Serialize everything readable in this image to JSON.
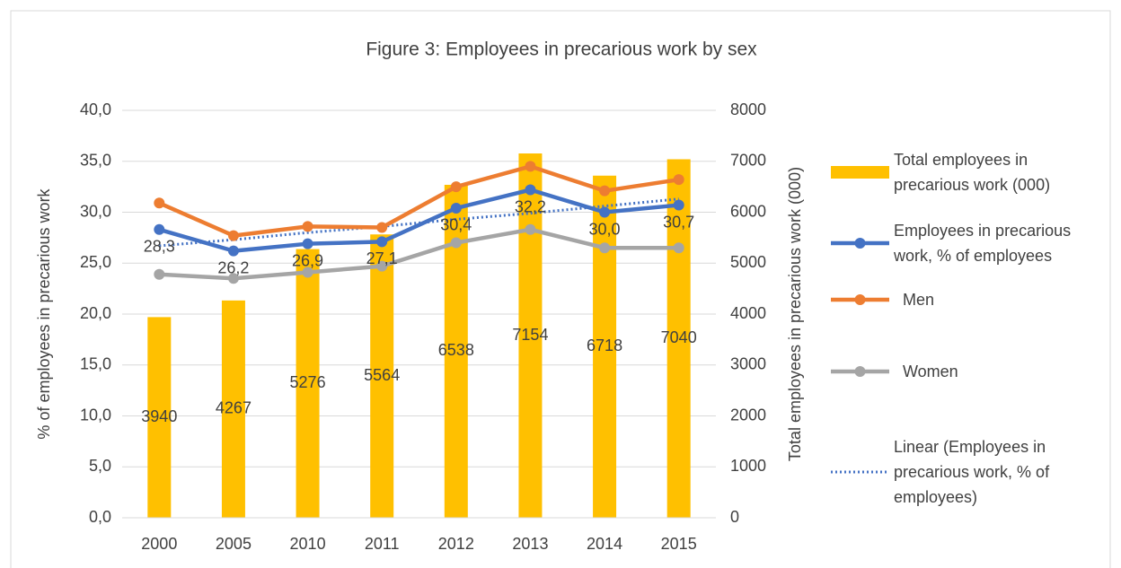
{
  "chart_data": {
    "type": "combo",
    "title": "Figure 3: Employees in precarious work by sex",
    "y_label": "% of employees in precarious work",
    "y2_label": "Total employees in precarious work (000)",
    "categories": [
      "2000",
      "2005",
      "2010",
      "2011",
      "2012",
      "2013",
      "2014",
      "2015"
    ],
    "ylim": [
      0,
      40
    ],
    "yticks": [
      {
        "value": 0,
        "label": "0,0"
      },
      {
        "value": 5,
        "label": "5,0"
      },
      {
        "value": 10,
        "label": "10,0"
      },
      {
        "value": 15,
        "label": "15,0"
      },
      {
        "value": 20,
        "label": "20,0"
      },
      {
        "value": 25,
        "label": "25,0"
      },
      {
        "value": 30,
        "label": "30,0"
      },
      {
        "value": 35,
        "label": "35,0"
      },
      {
        "value": 40,
        "label": "40,0"
      }
    ],
    "y2lim": [
      0,
      8000
    ],
    "y2ticks": [
      0,
      1000,
      2000,
      3000,
      4000,
      5000,
      6000,
      7000,
      8000
    ],
    "grid": true,
    "legend": "right",
    "series": [
      {
        "name": "Total employees in precarious work (000)",
        "kind": "bar",
        "axis": "y2",
        "color": "#FFC000",
        "values": [
          3940,
          4267,
          5276,
          5564,
          6538,
          7154,
          6718,
          7040
        ]
      },
      {
        "name": "Employees in precarious work, % of employees",
        "kind": "line",
        "color": "#4472C4",
        "values": [
          28.3,
          26.2,
          26.9,
          27.1,
          30.4,
          32.2,
          30.0,
          30.7
        ],
        "value_labels": [
          "28,3",
          "26,2",
          "26,9",
          "27,1",
          "30,4",
          "32,2",
          "30,0",
          "30,7"
        ]
      },
      {
        "name": "Men",
        "kind": "line",
        "color": "#ED7D31",
        "values": [
          30.9,
          27.7,
          28.6,
          28.5,
          32.5,
          34.5,
          32.1,
          33.2
        ]
      },
      {
        "name": "Women",
        "kind": "line",
        "color": "#A5A5A5",
        "values": [
          23.9,
          23.5,
          24.1,
          24.7,
          27.0,
          28.3,
          26.5,
          26.5
        ]
      },
      {
        "name": "Linear (Employees in precarious work, % of employees)",
        "kind": "trend",
        "color": "#4472C4",
        "values": [
          26.7,
          27.3,
          28.0,
          28.6,
          29.3,
          29.9,
          30.6,
          31.3
        ]
      }
    ]
  }
}
